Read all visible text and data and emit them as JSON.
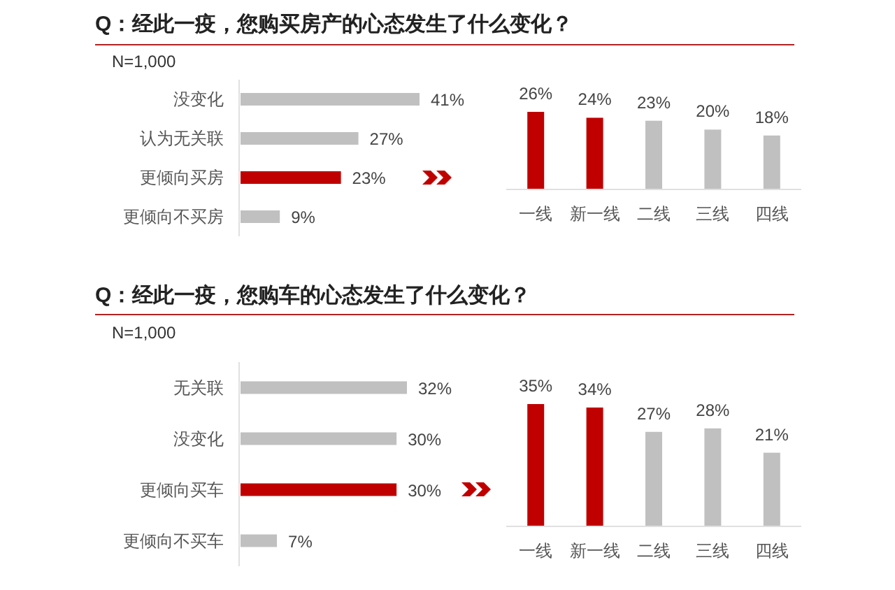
{
  "chart_data": [
    {
      "type": "bar",
      "orientation": "horizontal",
      "title": "Q：经此一疫，您购买房产的心态发生了什么变化？",
      "subtitle": "N=1,000",
      "categories": [
        "没变化",
        "认为无关联",
        "更倾向买房",
        "更倾向不买房"
      ],
      "values": [
        41,
        27,
        23,
        9
      ],
      "colors": [
        "#c0c0c0",
        "#c0c0c0",
        "#c00000",
        "#c0c0c0"
      ],
      "value_labels": [
        "41%",
        "27%",
        "23%",
        "9%"
      ]
    },
    {
      "type": "bar",
      "categories": [
        "一线",
        "新一线",
        "二线",
        "三线",
        "四线"
      ],
      "values": [
        26,
        24,
        23,
        20,
        18
      ],
      "colors": [
        "#c00000",
        "#c00000",
        "#c0c0c0",
        "#c0c0c0",
        "#c0c0c0"
      ],
      "value_labels": [
        "26%",
        "24%",
        "23%",
        "20%",
        "18%"
      ]
    },
    {
      "type": "bar",
      "orientation": "horizontal",
      "title": "Q：经此一疫，您购车的心态发生了什么变化？",
      "subtitle": "N=1,000",
      "categories": [
        "无关联",
        "没变化",
        "更倾向买车",
        "更倾向不买车"
      ],
      "values": [
        32,
        30,
        30,
        7
      ],
      "colors": [
        "#c0c0c0",
        "#c0c0c0",
        "#c00000",
        "#c0c0c0"
      ],
      "value_labels": [
        "32%",
        "30%",
        "30%",
        "7%"
      ]
    },
    {
      "type": "bar",
      "categories": [
        "一线",
        "新一线",
        "二线",
        "三线",
        "四线"
      ],
      "values": [
        35,
        34,
        27,
        28,
        21
      ],
      "colors": [
        "#c00000",
        "#c00000",
        "#c0c0c0",
        "#c0c0c0",
        "#c0c0c0"
      ],
      "value_labels": [
        "35%",
        "34%",
        "27%",
        "28%",
        "21%"
      ]
    }
  ]
}
